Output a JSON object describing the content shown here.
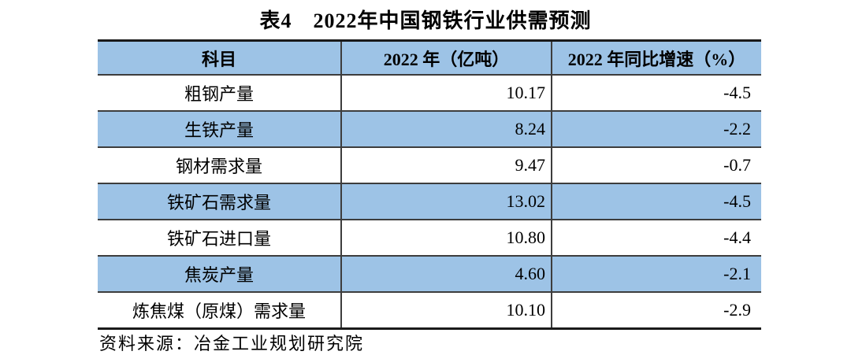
{
  "title": "表4　2022年中国钢铁行业供需预测",
  "table": {
    "headers": [
      "科目",
      "2022 年（亿吨）",
      "2022 年同比增速（%）"
    ],
    "rows": [
      {
        "item": "粗钢产量",
        "value": "10.17",
        "yoy": "-4.5"
      },
      {
        "item": "生铁产量",
        "value": "8.24",
        "yoy": "-2.2"
      },
      {
        "item": "钢材需求量",
        "value": "9.47",
        "yoy": "-0.7"
      },
      {
        "item": "铁矿石需求量",
        "value": "13.02",
        "yoy": "-4.5"
      },
      {
        "item": "铁矿石进口量",
        "value": "10.80",
        "yoy": "-4.4"
      },
      {
        "item": "焦炭产量",
        "value": "4.60",
        "yoy": "-2.1"
      },
      {
        "item": "炼焦煤（原煤）需求量",
        "value": "10.10",
        "yoy": "-2.9"
      }
    ]
  },
  "footer": {
    "source": "资料来源：冶金工业规划研究院"
  },
  "colors": {
    "row_highlight": "#9dc3e6",
    "border_outer": "#1a1a1a",
    "border_inner": "#3d3d3d",
    "text": "#000000",
    "background": "#ffffff"
  },
  "chart_data": {
    "type": "table",
    "title": "表4　2022年中国钢铁行业供需预测",
    "columns": [
      "科目",
      "2022 年（亿吨）",
      "2022 年同比增速（%）"
    ],
    "categories": [
      "粗钢产量",
      "生铁产量",
      "钢材需求量",
      "铁矿石需求量",
      "铁矿石进口量",
      "焦炭产量",
      "炼焦煤（原煤）需求量"
    ],
    "series": [
      {
        "name": "2022 年（亿吨）",
        "values": [
          10.17,
          8.24,
          9.47,
          13.02,
          10.8,
          4.6,
          10.1
        ]
      },
      {
        "name": "2022 年同比增速（%）",
        "values": [
          -4.5,
          -2.2,
          -0.7,
          -4.5,
          -4.4,
          -2.1,
          -2.9
        ]
      }
    ]
  }
}
